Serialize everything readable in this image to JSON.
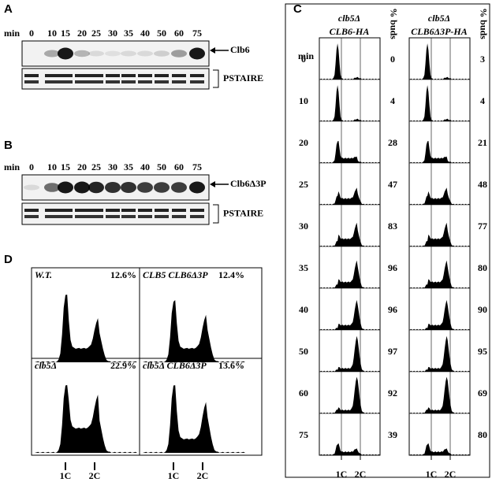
{
  "panels": {
    "a": {
      "label": "A",
      "time_label": "min",
      "times": [
        "0",
        "10",
        "15",
        "20",
        "25",
        "30",
        "35",
        "40",
        "50",
        "60",
        "75"
      ],
      "blot_label": "Clb6",
      "control_label": "PSTAIRE"
    },
    "b": {
      "label": "B",
      "time_label": "min",
      "times": [
        "0",
        "10",
        "15",
        "20",
        "25",
        "30",
        "35",
        "40",
        "50",
        "60",
        "75"
      ],
      "blot_label": "Clb6Δ3P",
      "control_label": "PSTAIRE"
    },
    "c": {
      "label": "C",
      "time_label": "min",
      "times": [
        "0",
        "10",
        "20",
        "25",
        "30",
        "35",
        "40",
        "50",
        "60",
        "75"
      ],
      "columns": [
        {
          "title_1": "clb5Δ",
          "title_2": "CLB6-HA",
          "buds_header": "% buds",
          "buds": [
            0,
            4,
            28,
            47,
            83,
            96,
            96,
            97,
            92,
            39
          ]
        },
        {
          "title_1": "clb5Δ",
          "title_2": "CLB6Δ3P-HA",
          "buds_header": "% buds",
          "buds": [
            3,
            4,
            21,
            48,
            77,
            80,
            90,
            95,
            69,
            80
          ]
        }
      ],
      "x_labels": [
        "1C",
        "2C"
      ]
    },
    "d": {
      "label": "D",
      "quadrants": [
        {
          "genotype": "W.T.",
          "percent": "12.6%"
        },
        {
          "genotype": "CLB5 CLB6Δ3P",
          "percent": "12.4%"
        },
        {
          "genotype": "clb5Δ",
          "percent": "22.9%"
        },
        {
          "genotype": "clb5Δ CLB6Δ3P",
          "percent": "13.6%"
        }
      ],
      "x_labels": [
        "1C",
        "2C"
      ]
    }
  }
}
